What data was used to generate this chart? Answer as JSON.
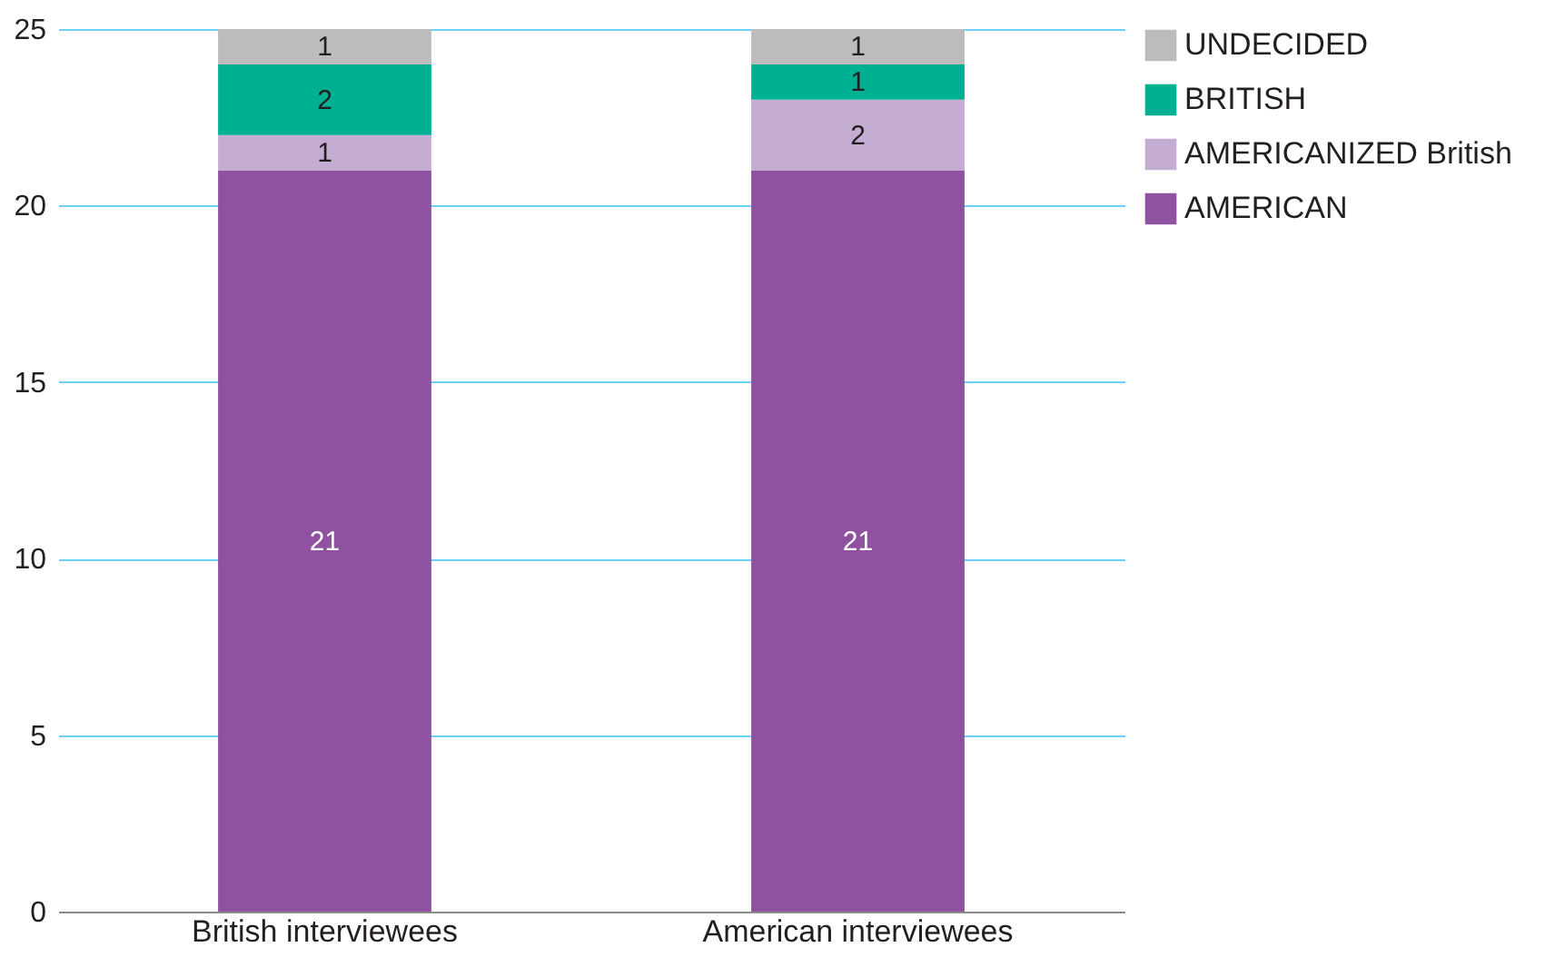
{
  "chart_data": {
    "type": "bar",
    "stacked": true,
    "categories": [
      "British interviewees",
      "American interviewees"
    ],
    "series": [
      {
        "name": "AMERICAN",
        "color": "#8e52a0",
        "values": [
          21,
          21
        ]
      },
      {
        "name": "AMERICANIZED British",
        "color": "#c5acd3",
        "values": [
          1,
          2
        ]
      },
      {
        "name": "BRITISH",
        "color": "#00b092",
        "values": [
          2,
          1
        ]
      },
      {
        "name": "UNDECIDED",
        "color": "#bcbcbc",
        "values": [
          1,
          1
        ]
      }
    ],
    "ylim": [
      0,
      25
    ],
    "yticks": [
      0,
      5,
      10,
      15,
      20,
      25
    ],
    "grid": "y",
    "legend": "top right",
    "data_labels": true
  }
}
